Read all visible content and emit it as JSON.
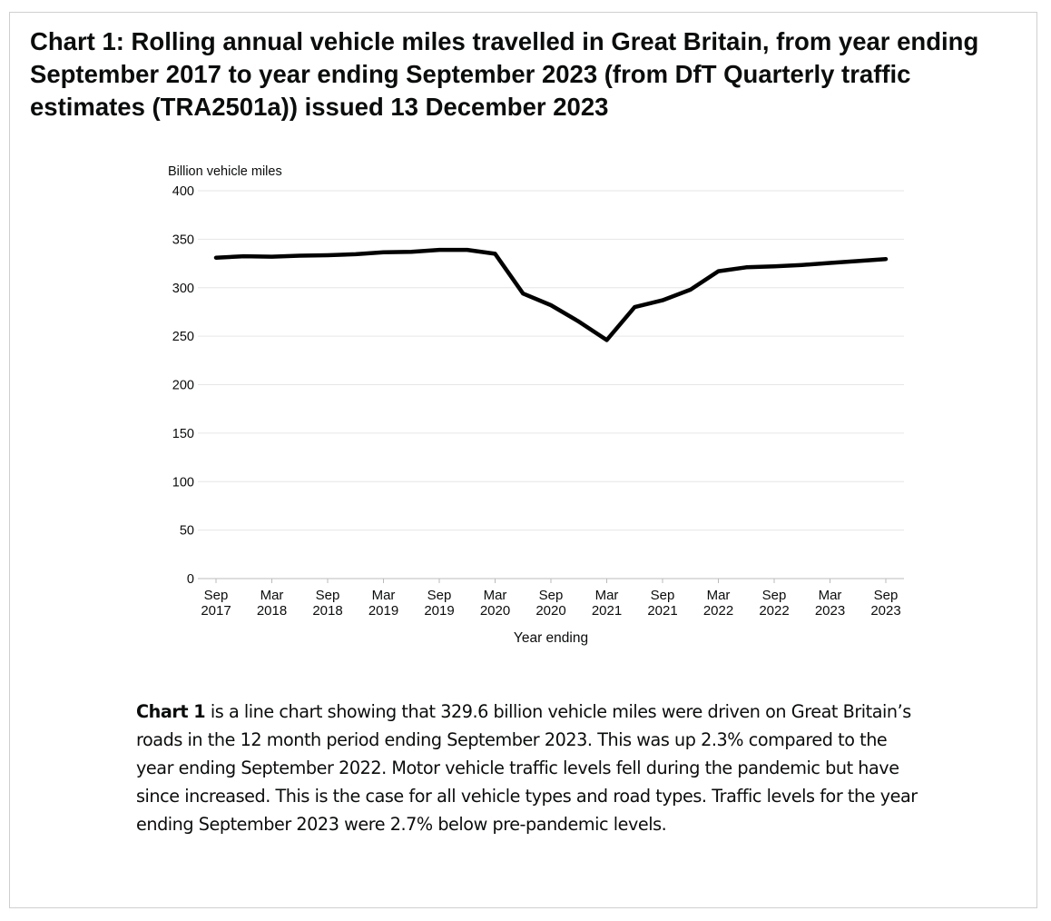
{
  "title": "Chart 1: Rolling annual vehicle miles travelled in Great Britain, from year ending September 2017 to year ending September 2023 (from DfT Quarterly traffic estimates (TRA2501a)) issued 13 December 2023",
  "chart_data": {
    "type": "line",
    "ylabel": "Billion vehicle miles",
    "xlabel": "Year ending",
    "ylim": [
      0,
      400
    ],
    "yticks": [
      "0",
      "50",
      "100",
      "150",
      "200",
      "250",
      "300",
      "350",
      "400"
    ],
    "grid": true,
    "categories": [
      "Sep 2017",
      "Mar 2018",
      "Sep 2018",
      "Mar 2019",
      "Sep 2019",
      "Mar 2020",
      "Sep 2020",
      "Mar 2021",
      "Sep 2021",
      "Mar 2022",
      "Sep 2022",
      "Mar 2023",
      "Sep 2023"
    ],
    "series": [
      {
        "name": "Billion vehicle miles",
        "x": [
          0,
          0.5,
          1,
          1.5,
          2,
          2.5,
          3,
          3.5,
          4,
          4.5,
          5,
          5.5,
          6,
          6.5,
          7,
          7.5,
          8,
          8.5,
          9,
          9.5,
          10,
          10.5,
          11,
          11.5,
          12
        ],
        "values": [
          331,
          332.5,
          332,
          333,
          333.5,
          334.5,
          336.5,
          337,
          339,
          339,
          335,
          294,
          282,
          265,
          246,
          280,
          287,
          298,
          317,
          321,
          322,
          323.5,
          325.5,
          327.5,
          329.6
        ]
      }
    ]
  },
  "description": {
    "lead": "Chart 1",
    "text": " is a line chart showing that 329.6 billion vehicle miles were driven on Great Britain’s roads in the 12 month period ending September 2023. This was up 2.3% compared to the year ending September 2022. Motor vehicle traffic levels fell during the pandemic but have since increased. This is the case for all vehicle types and road types. Traffic levels for the year ending September 2023 were 2.7% below pre-pandemic levels."
  },
  "colors": {
    "line": "#000000",
    "grid": "#e6e6e6",
    "axis": "#bbbbbb",
    "text": "#0b0c0c"
  }
}
